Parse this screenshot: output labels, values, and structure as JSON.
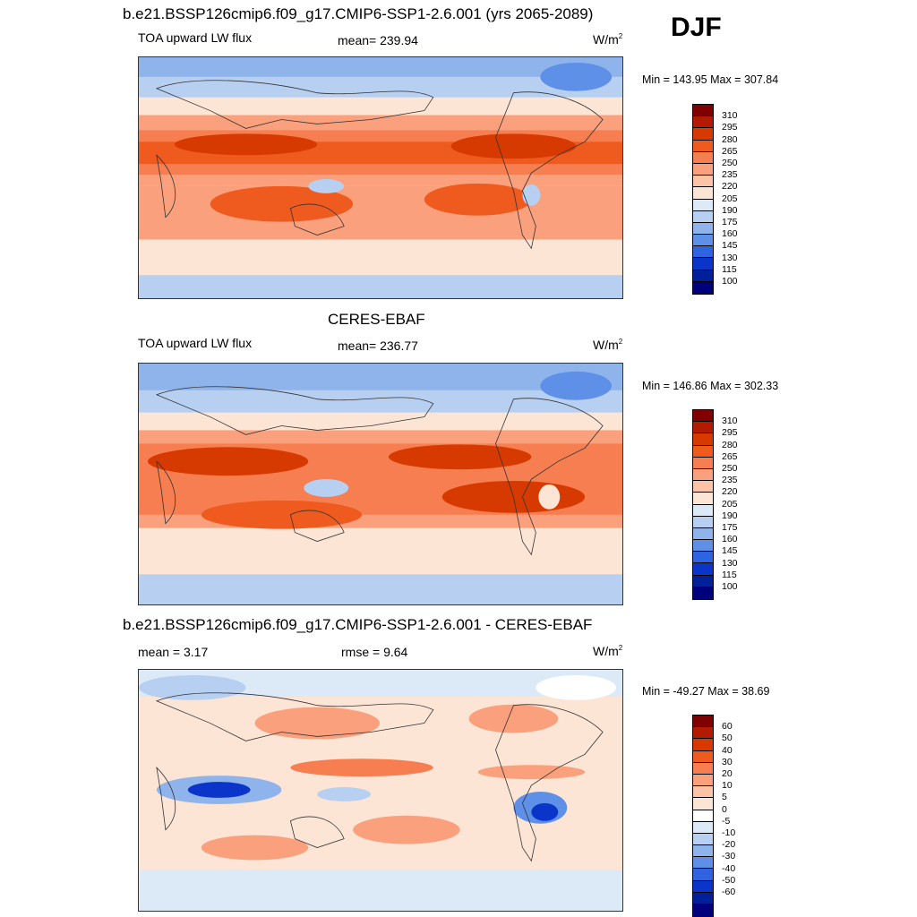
{
  "season": "DJF",
  "panels": [
    {
      "title": "b.e21.BSSP126cmip6.f09_g17.CMIP6-SSP1-2.6.001 (yrs 2065-2089)",
      "left_label": "TOA upward LW flux",
      "center_label": "mean= 239.94",
      "units_base": "W/m",
      "units_sup": "2",
      "minmax": "Min = 143.95 Max = 307.84",
      "colorbar_ticks": [
        "310",
        "295",
        "280",
        "265",
        "250",
        "235",
        "220",
        "205",
        "190",
        "175",
        "160",
        "145",
        "130",
        "115",
        "100"
      ]
    },
    {
      "title": "CERES-EBAF",
      "left_label": "TOA upward LW flux",
      "center_label": "mean= 236.77",
      "units_base": "W/m",
      "units_sup": "2",
      "minmax": "Min = 146.86 Max = 302.33",
      "colorbar_ticks": [
        "310",
        "295",
        "280",
        "265",
        "250",
        "235",
        "220",
        "205",
        "190",
        "175",
        "160",
        "145",
        "130",
        "115",
        "100"
      ]
    },
    {
      "title": "b.e21.BSSP126cmip6.f09_g17.CMIP6-SSP1-2.6.001 - CERES-EBAF",
      "left_label": "mean =   3.17",
      "center_label": "rmse =   9.64",
      "units_base": "W/m",
      "units_sup": "2",
      "minmax": "Min = -49.27 Max =  38.69",
      "colorbar_ticks": [
        "60",
        "50",
        "40",
        "30",
        "20",
        "10",
        "5",
        "0",
        "-5",
        "-10",
        "-20",
        "-30",
        "-40",
        "-50",
        "-60"
      ]
    }
  ],
  "colors": {
    "seq_palette": [
      "#7f0000",
      "#b21b00",
      "#d63a00",
      "#ef5a1e",
      "#f77e50",
      "#fba07c",
      "#fcc3a6",
      "#fde5d6",
      "#dce9f7",
      "#b7d0f1",
      "#8fb4ec",
      "#5f90e8",
      "#2f64e0",
      "#0a35c8",
      "#001f9a",
      "#00007f"
    ],
    "diff_palette": [
      "#7f0000",
      "#b21b00",
      "#d63a00",
      "#ef5a1e",
      "#f77e50",
      "#fba07c",
      "#fcc3a6",
      "#fde5d6",
      "#ffffff",
      "#dce9f7",
      "#b7d0f1",
      "#8fb4ec",
      "#5f90e8",
      "#2f64e0",
      "#0a35c8",
      "#001f9a",
      "#00007f"
    ]
  }
}
